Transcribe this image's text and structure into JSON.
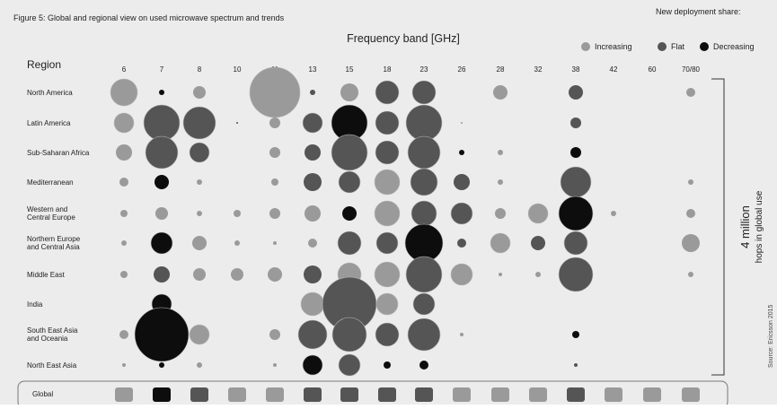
{
  "figure_title": "Figure 5: Global and regional view on used microwave spectrum and trends",
  "legend": {
    "title": "New deployment share:",
    "items": [
      {
        "label": "Increasing",
        "color": "#9a9a9a"
      },
      {
        "label": "Flat",
        "color": "#555555"
      },
      {
        "label": "Decreasing",
        "color": "#0d0d0d"
      }
    ]
  },
  "side_label": {
    "value": "4 million",
    "text": "hops in global use"
  },
  "source": "Source: Ericsson 2015",
  "chart_data": {
    "type": "bubble",
    "title": "Figure 5: Global and regional view on used microwave spectrum and trends",
    "xlabel": "Frequency band [GHz]",
    "ylabel": "Region",
    "bands": [
      "6",
      "7",
      "8",
      "10",
      "11",
      "13",
      "15",
      "18",
      "23",
      "26",
      "28",
      "32",
      "38",
      "42",
      "60",
      "70/80"
    ],
    "regions": [
      "North America",
      "Latin America",
      "Sub-Saharan Africa",
      "Mediterranean",
      "Western and Central Europe",
      "Northern Europe and Central Asia",
      "Middle East",
      "India",
      "South East Asia and Oceania",
      "North East Asia"
    ],
    "trend_colors": {
      "increasing": "#9a9a9a",
      "flat": "#555555",
      "decreasing": "#0d0d0d"
    },
    "cells": [
      [
        [
          15,
          "increasing"
        ],
        [
          3,
          "decreasing"
        ],
        [
          7,
          "increasing"
        ],
        null,
        [
          28,
          "increasing"
        ],
        [
          3,
          "flat"
        ],
        [
          10,
          "increasing"
        ],
        [
          13,
          "flat"
        ],
        [
          13,
          "flat"
        ],
        null,
        [
          8,
          "increasing"
        ],
        null,
        [
          8,
          "flat"
        ],
        null,
        null,
        [
          5,
          "increasing"
        ]
      ],
      [
        [
          11,
          "increasing"
        ],
        [
          20,
          "flat"
        ],
        [
          18,
          "flat"
        ],
        [
          1,
          "flat"
        ],
        [
          6,
          "increasing"
        ],
        [
          11,
          "flat"
        ],
        [
          20,
          "decreasing"
        ],
        [
          13,
          "flat"
        ],
        [
          20,
          "flat"
        ],
        [
          1,
          "increasing"
        ],
        null,
        null,
        [
          6,
          "flat"
        ],
        null,
        null,
        null
      ],
      [
        [
          9,
          "increasing"
        ],
        [
          18,
          "flat"
        ],
        [
          11,
          "flat"
        ],
        null,
        [
          6,
          "increasing"
        ],
        [
          9,
          "flat"
        ],
        [
          20,
          "flat"
        ],
        [
          13,
          "flat"
        ],
        [
          18,
          "flat"
        ],
        [
          3,
          "decreasing"
        ],
        [
          3,
          "increasing"
        ],
        null,
        [
          6,
          "decreasing"
        ],
        null,
        null,
        null
      ],
      [
        [
          5,
          "increasing"
        ],
        [
          8,
          "decreasing"
        ],
        [
          3,
          "increasing"
        ],
        null,
        [
          4,
          "increasing"
        ],
        [
          10,
          "flat"
        ],
        [
          12,
          "flat"
        ],
        [
          14,
          "increasing"
        ],
        [
          15,
          "flat"
        ],
        [
          9,
          "flat"
        ],
        [
          3,
          "increasing"
        ],
        null,
        [
          17,
          "flat"
        ],
        null,
        null,
        [
          3,
          "increasing"
        ]
      ],
      [
        [
          4,
          "increasing"
        ],
        [
          7,
          "increasing"
        ],
        [
          3,
          "increasing"
        ],
        [
          4,
          "increasing"
        ],
        [
          6,
          "increasing"
        ],
        [
          9,
          "increasing"
        ],
        [
          8,
          "decreasing"
        ],
        [
          14,
          "increasing"
        ],
        [
          14,
          "flat"
        ],
        [
          12,
          "flat"
        ],
        [
          6,
          "increasing"
        ],
        [
          11,
          "increasing"
        ],
        [
          19,
          "decreasing"
        ],
        [
          3,
          "increasing"
        ],
        null,
        [
          5,
          "increasing"
        ]
      ],
      [
        [
          3,
          "increasing"
        ],
        [
          12,
          "decreasing"
        ],
        [
          8,
          "increasing"
        ],
        [
          3,
          "increasing"
        ],
        [
          2,
          "increasing"
        ],
        [
          5,
          "increasing"
        ],
        [
          13,
          "flat"
        ],
        [
          12,
          "flat"
        ],
        [
          21,
          "decreasing"
        ],
        [
          5,
          "flat"
        ],
        [
          11,
          "increasing"
        ],
        [
          8,
          "flat"
        ],
        [
          13,
          "flat"
        ],
        null,
        null,
        [
          10,
          "increasing"
        ]
      ],
      [
        [
          4,
          "increasing"
        ],
        [
          9,
          "flat"
        ],
        [
          7,
          "increasing"
        ],
        [
          7,
          "increasing"
        ],
        [
          8,
          "increasing"
        ],
        [
          10,
          "flat"
        ],
        [
          13,
          "increasing"
        ],
        [
          14,
          "increasing"
        ],
        [
          20,
          "flat"
        ],
        [
          12,
          "increasing"
        ],
        [
          2,
          "increasing"
        ],
        [
          3,
          "increasing"
        ],
        [
          19,
          "flat"
        ],
        null,
        null,
        [
          3,
          "increasing"
        ]
      ],
      [
        null,
        [
          11,
          "decreasing"
        ],
        null,
        null,
        null,
        [
          13,
          "increasing"
        ],
        [
          30,
          "flat"
        ],
        [
          12,
          "increasing"
        ],
        [
          12,
          "flat"
        ],
        null,
        null,
        null,
        null,
        null,
        null,
        null
      ],
      [
        [
          5,
          "increasing"
        ],
        [
          30,
          "decreasing"
        ],
        [
          11,
          "increasing"
        ],
        null,
        [
          6,
          "increasing"
        ],
        [
          16,
          "flat"
        ],
        [
          19,
          "flat"
        ],
        [
          13,
          "flat"
        ],
        [
          18,
          "flat"
        ],
        [
          2,
          "increasing"
        ],
        null,
        null,
        [
          4,
          "decreasing"
        ],
        null,
        null,
        null
      ],
      [
        [
          2,
          "increasing"
        ],
        [
          3,
          "decreasing"
        ],
        [
          3,
          "increasing"
        ],
        null,
        [
          2,
          "increasing"
        ],
        [
          11,
          "decreasing"
        ],
        [
          12,
          "flat"
        ],
        [
          4,
          "decreasing"
        ],
        [
          5,
          "decreasing"
        ],
        null,
        null,
        null,
        [
          2,
          "flat"
        ],
        null,
        null,
        null
      ]
    ],
    "global_row": {
      "label": "Global",
      "trends": [
        "increasing",
        "decreasing",
        "flat",
        "increasing",
        "increasing",
        "flat",
        "flat",
        "flat",
        "flat",
        "increasing",
        "increasing",
        "increasing",
        "flat",
        "increasing",
        "increasing",
        "increasing"
      ]
    }
  }
}
